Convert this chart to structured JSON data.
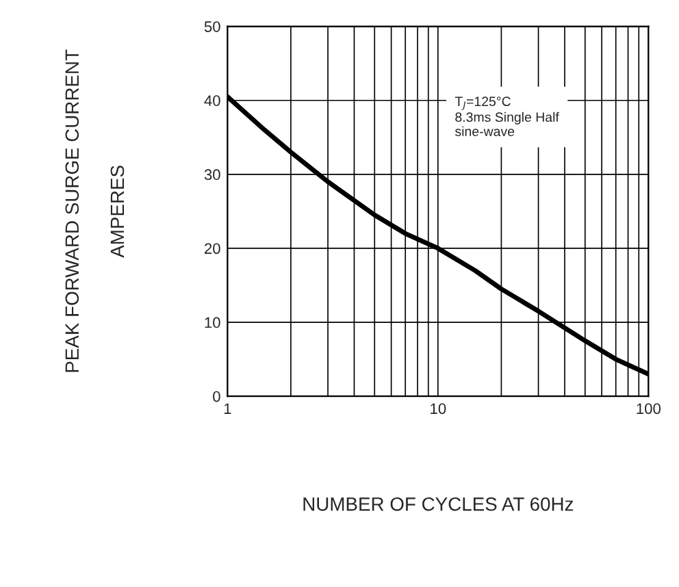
{
  "chart_data": {
    "type": "line",
    "xlabel": "NUMBER OF CYCLES AT 60Hz",
    "ylabel": "PEAK FORWARD SURGE CURRENT\nAMPERES",
    "x": [
      1,
      1.5,
      2,
      3,
      5,
      7,
      10,
      15,
      20,
      30,
      50,
      70,
      100
    ],
    "series": [
      {
        "color": "#000000",
        "values": [
          40.5,
          36,
          33,
          29,
          24.5,
          22,
          20,
          17,
          14.5,
          11.5,
          7.5,
          5,
          3
        ]
      }
    ],
    "xlim": [
      1,
      100
    ],
    "xticks": [
      1,
      10,
      100
    ],
    "ylim": [
      0,
      50
    ],
    "yticks": [
      0,
      10,
      20,
      30,
      40,
      50
    ],
    "log": "x",
    "grid": true,
    "marker": "none",
    "line_style": "solid",
    "annotations": [
      "T$_{J}$=125°C\n8.3ms Single Half\nsine-wave"
    ]
  }
}
